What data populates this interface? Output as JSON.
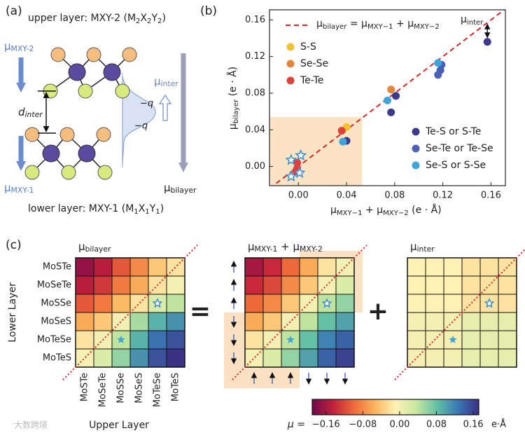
{
  "panel_a": {
    "label": "(a)",
    "upper_layer": [
      "upper layer: MXY-2 (M",
      "2",
      "X",
      "2",
      "Y",
      "2",
      ")"
    ],
    "lower_layer": [
      "lower layer: MXY-1 (M",
      "1",
      "X",
      "1",
      "Y",
      "1",
      ")"
    ],
    "mu_upper": [
      "μ",
      "MXY-2"
    ],
    "mu_lower": [
      "μ",
      "MXY-1"
    ],
    "d_inter": [
      "d",
      "inter"
    ],
    "mu_inter": [
      "μ",
      "inter"
    ],
    "mu_bilayer": [
      "μ",
      "bilayer"
    ],
    "charge_labels": [
      "−q",
      "−q"
    ]
  },
  "chart_data": [
    {
      "type": "scatter",
      "label": "(b)",
      "equation": [
        "μ",
        "bilayer",
        " = μ",
        "MXY−1",
        " + μ",
        "MXY−2"
      ],
      "xlabel": [
        "μ",
        "MXY−1",
        " + μ",
        "MXY−2",
        " (e · Å)"
      ],
      "ylabel": [
        "μ",
        "bilayer",
        " (e · Å)"
      ],
      "annotation": [
        "μ",
        "inter"
      ],
      "xlim": [
        -0.024,
        0.172
      ],
      "ylim": [
        -0.021,
        0.171
      ],
      "xticks": [
        {
          "value": 0,
          "label": "0.00"
        },
        0.04,
        0.08,
        0.12,
        0.16
      ],
      "yticks": [
        {
          "value": 0,
          "label": "0.00"
        },
        0.04,
        0.08,
        0.12,
        0.16
      ],
      "reference_line": {
        "slope": 1,
        "color": "#d62728",
        "style": "dashed"
      },
      "highlight": {
        "xlim": [
          -0.024,
          0.053
        ],
        "ylim": [
          -0.021,
          0.054
        ],
        "color": "#fbe3c4"
      },
      "series": [
        {
          "name": "S-S",
          "color": "#f2c12e",
          "marker": "circle",
          "x": [
            0.04
          ],
          "y": [
            0.043
          ]
        },
        {
          "name": "Se-Se",
          "color": "#e5843a",
          "marker": "circle",
          "x": [
            0.077
          ],
          "y": [
            0.084
          ]
        },
        {
          "name": "Te-Te",
          "color": "#e0403a",
          "marker": "circle",
          "x": [
            0.036,
            -0.001,
            -0.001,
            -0.002
          ],
          "y": [
            0.039,
            0.004,
            -0.002,
            -0.005
          ]
        },
        {
          "name": "Te-S or S-Te",
          "color": "#3b3a8c",
          "marker": "circle",
          "x": [
            0.157,
            0.081,
            0.077,
            0.04
          ],
          "y": [
            0.136,
            0.077,
            0.059,
            0.028
          ]
        },
        {
          "name": "Se-Te or Te-Se",
          "color": "#4a5fb5",
          "marker": "circle",
          "x": [
            0.119,
            0.118,
            0.116
          ],
          "y": [
            0.111,
            0.105,
            0.1
          ]
        },
        {
          "name": "Se-S or S-Se",
          "color": "#3fa3dc",
          "marker": "circle",
          "x": [
            0.116,
            0.074,
            0.037
          ],
          "y": [
            0.113,
            0.072,
            0.027
          ]
        },
        {
          "color": "#3f8fd0",
          "marker": "star",
          "x": [
            -0.006,
            0.002,
            -0.006,
            0.001
          ],
          "y": [
            0.007,
            0.012,
            -0.011,
            -0.007
          ]
        }
      ]
    },
    {
      "type": "heatmap",
      "label": "(c)",
      "rows": [
        "MoSTe",
        "MoSeTe",
        "MoSSe",
        "MoSeS",
        "MoTeSe",
        "MoTeS"
      ],
      "columns": [
        "MoSTe",
        "MoSeTe",
        "MoSSe",
        "MoSeS",
        "MoTeSe",
        "MoTeS"
      ],
      "ylabel": "Lower Layer",
      "xlabel": "Upper Layer",
      "operators": [
        "=",
        "+"
      ],
      "maps": [
        {
          "title": [
            "μ",
            "bilayer"
          ],
          "values": [
            [
              -0.17,
              -0.15,
              -0.11,
              -0.08,
              -0.04,
              -0.02
            ],
            [
              -0.15,
              -0.13,
              -0.09,
              -0.06,
              -0.02,
              0.0
            ],
            [
              -0.11,
              -0.09,
              -0.05,
              -0.02,
              0.02,
              0.04
            ],
            [
              -0.06,
              -0.04,
              0.0,
              0.05,
              0.09,
              0.11
            ],
            [
              -0.02,
              0.0,
              0.04,
              0.09,
              0.13,
              0.15
            ],
            [
              0.0,
              0.02,
              0.06,
              0.11,
              0.15,
              0.17
            ]
          ]
        },
        {
          "title": [
            "μ",
            "MXY-1",
            " + μ",
            "MXY-2"
          ],
          "values": [
            [
              -0.16,
              -0.14,
              -0.1,
              -0.06,
              -0.02,
              0.0
            ],
            [
              -0.14,
              -0.12,
              -0.08,
              -0.04,
              0.0,
              0.02
            ],
            [
              -0.1,
              -0.08,
              -0.04,
              0.0,
              0.04,
              0.06
            ],
            [
              -0.06,
              -0.04,
              0.0,
              0.04,
              0.08,
              0.1
            ],
            [
              -0.02,
              0.0,
              0.04,
              0.08,
              0.12,
              0.14
            ],
            [
              0.0,
              0.02,
              0.06,
              0.1,
              0.14,
              0.16
            ]
          ]
        },
        {
          "title": [
            "μ",
            "inter"
          ],
          "values": [
            [
              -0.01,
              -0.01,
              -0.01,
              -0.02,
              -0.02,
              -0.02
            ],
            [
              -0.01,
              -0.01,
              -0.01,
              -0.02,
              -0.02,
              -0.02
            ],
            [
              -0.01,
              -0.01,
              -0.01,
              -0.02,
              -0.02,
              -0.02
            ],
            [
              0.0,
              0.0,
              0.0,
              0.01,
              0.01,
              0.01
            ],
            [
              0.0,
              0.0,
              0.0,
              0.01,
              0.01,
              0.01
            ],
            [
              0.0,
              0.0,
              0.0,
              0.01,
              0.01,
              0.01
            ]
          ]
        }
      ],
      "colorbar": {
        "mu_label": "μ =",
        "unit": "e·Å",
        "lim": [
          -0.19,
          0.172
        ],
        "ticks": [
          {
            "value": -0.16,
            "label": "−0.16"
          },
          {
            "value": -0.08,
            "label": "−0.08"
          },
          {
            "value": 0,
            "label": "0.00"
          },
          0.08,
          0.16
        ],
        "colors": [
          "#6b0a4e",
          "#c2213a",
          "#ee6a3a",
          "#fbb45c",
          "#fef2b5",
          "#c7e7a0",
          "#62bfa5",
          "#3a78b5",
          "#3b2f85"
        ]
      }
    }
  ],
  "watermark": "大数跨境"
}
